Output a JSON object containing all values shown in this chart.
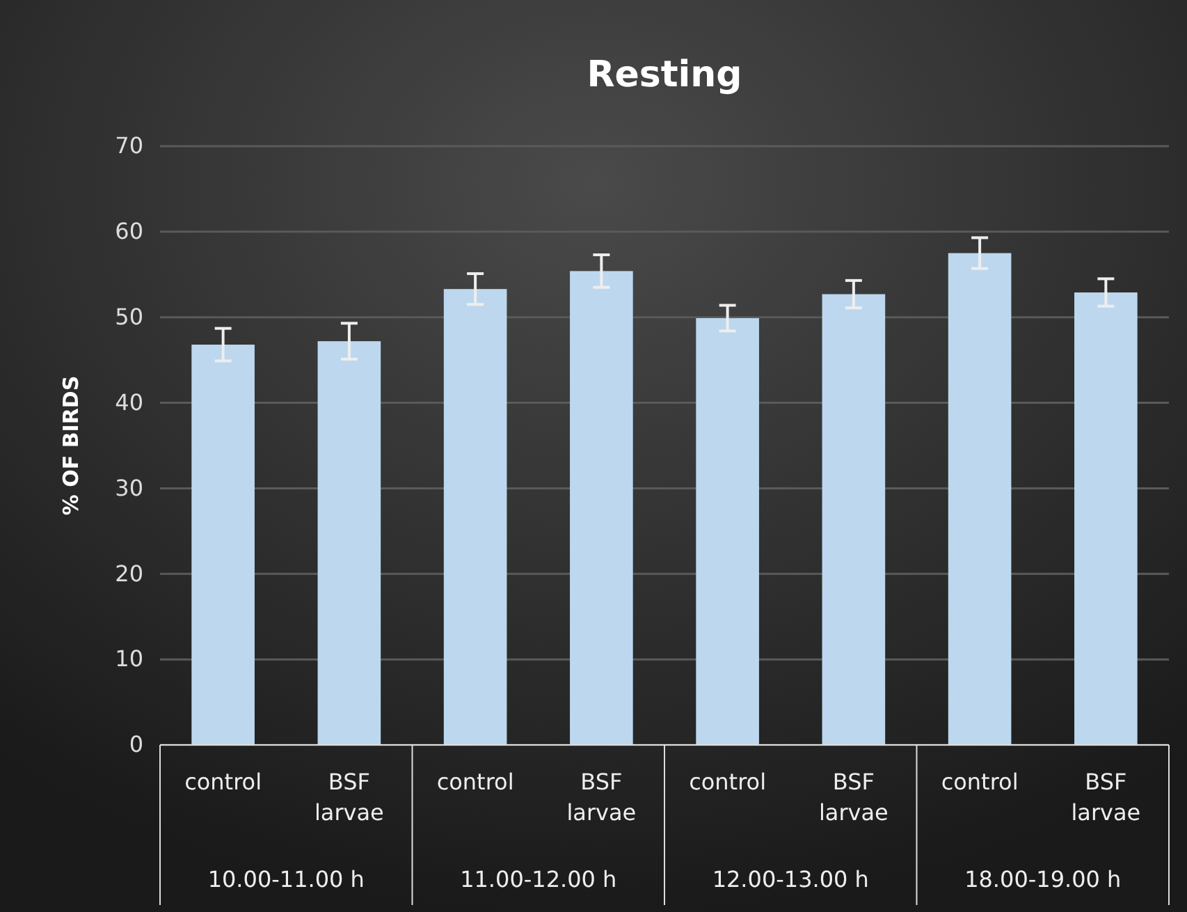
{
  "chart_data": {
    "type": "bar",
    "title": "Resting",
    "ylabel": "% OF BIRDS",
    "categories": [
      "control",
      "BSF larvae",
      "control",
      "BSF larvae",
      "control",
      "BSF larvae",
      "control",
      "BSF larvae"
    ],
    "values": [
      46.8,
      47.2,
      53.3,
      55.4,
      49.9,
      52.7,
      57.5,
      52.9
    ],
    "errors": [
      1.9,
      2.1,
      1.8,
      1.9,
      1.5,
      1.6,
      1.8,
      1.6
    ],
    "color": "#bdd7ee",
    "ylim": [
      0,
      70
    ],
    "yticks": [
      0,
      10,
      20,
      30,
      40,
      50,
      60,
      70
    ],
    "grid": "y",
    "annotations": [
      "10.00-11.00 h",
      "11.00-12.00 h",
      "12.00-13.00 h",
      "18.00-19.00 h"
    ]
  }
}
